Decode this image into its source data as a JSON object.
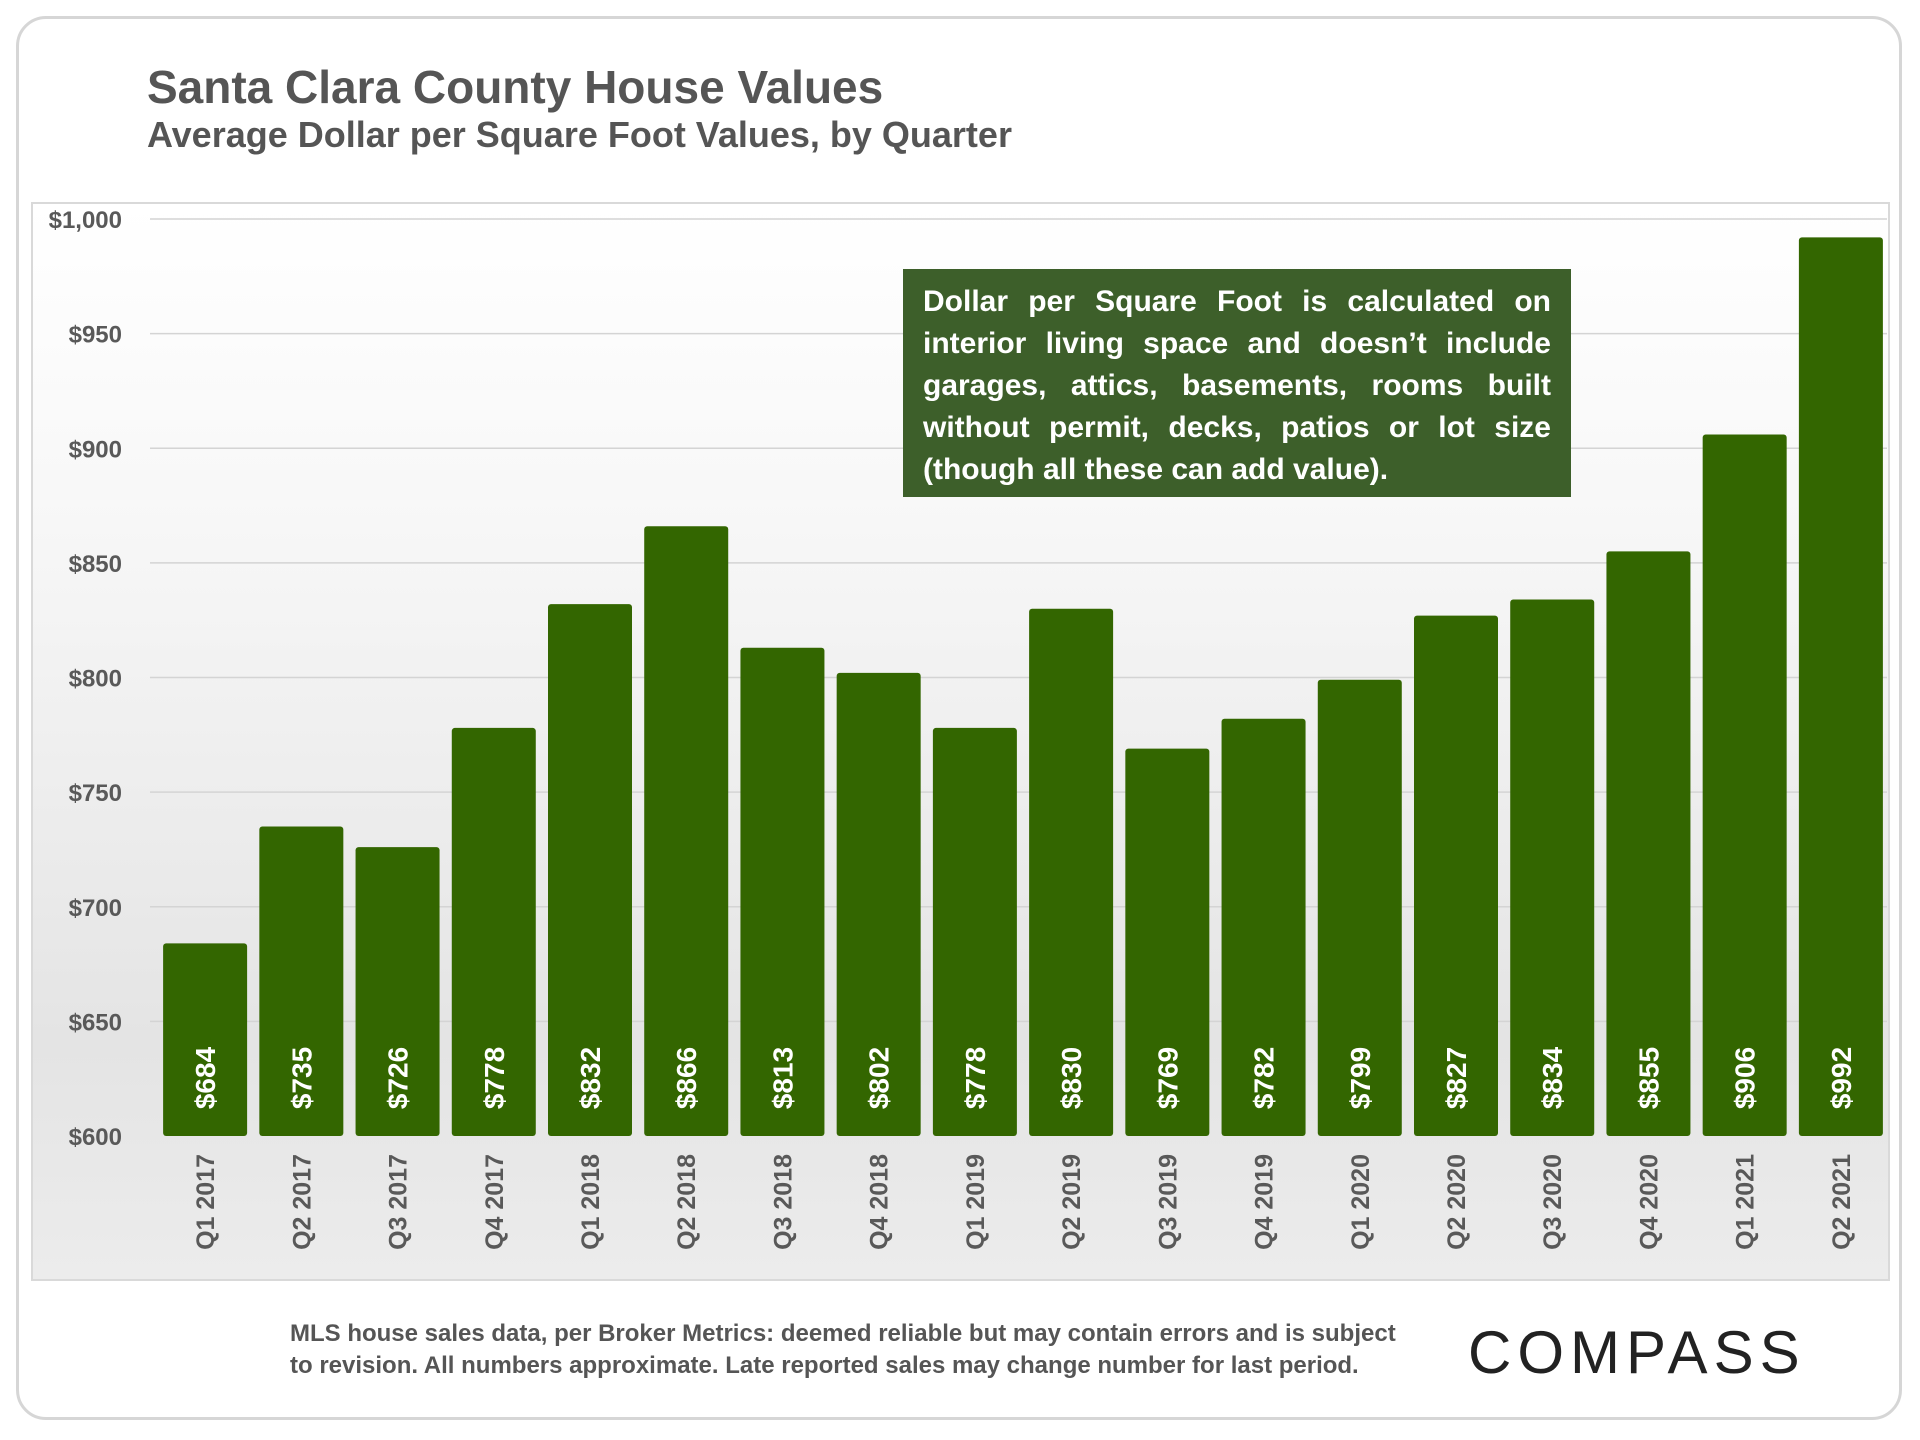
{
  "header": {
    "title": "Santa Clara County House Values",
    "subtitle": "Average Dollar per Square Foot Values, by Quarter"
  },
  "note": {
    "text": "Dollar per Square Foot is calculated on interior living space and doesn’t include garages, attics, basements, rooms built without permit, decks, patios or lot size (though all these can add value)."
  },
  "footer": {
    "line1": "MLS house sales data, per Broker Metrics:  deemed reliable but may contain errors and is subject",
    "line2": "to revision. All numbers approximate. Late reported sales may change number for last period."
  },
  "brand": {
    "logo_text": "COMPASS"
  },
  "colors": {
    "bar": "#336600",
    "note_bg": "#3d5f2a",
    "text": "#555555"
  },
  "chart_data": {
    "type": "bar",
    "title": "Santa Clara County House Values",
    "subtitle": "Average Dollar per Square Foot Values, by Quarter",
    "xlabel": "",
    "ylabel": "",
    "ylim": [
      600,
      1000
    ],
    "yticks": [
      600,
      650,
      700,
      750,
      800,
      850,
      900,
      950,
      1000
    ],
    "ytick_labels": [
      "$600",
      "$650",
      "$700",
      "$750",
      "$800",
      "$850",
      "$900",
      "$950",
      "$1,000"
    ],
    "grid": true,
    "categories": [
      "Q1 2017",
      "Q2 2017",
      "Q3 2017",
      "Q4 2017",
      "Q1 2018",
      "Q2 2018",
      "Q3 2018",
      "Q4 2018",
      "Q1 2019",
      "Q2 2019",
      "Q3 2019",
      "Q4 2019",
      "Q1 2020",
      "Q2 2020",
      "Q3 2020",
      "Q4 2020",
      "Q1 2021",
      "Q2 2021"
    ],
    "values": [
      684,
      735,
      726,
      778,
      832,
      866,
      813,
      802,
      778,
      830,
      769,
      782,
      799,
      827,
      834,
      855,
      906,
      992
    ],
    "data_labels": [
      "$684",
      "$735",
      "$726",
      "$778",
      "$832",
      "$866",
      "$813",
      "$802",
      "$778",
      "$830",
      "$769",
      "$782",
      "$799",
      "$827",
      "$834",
      "$855",
      "$906",
      "$992"
    ]
  }
}
